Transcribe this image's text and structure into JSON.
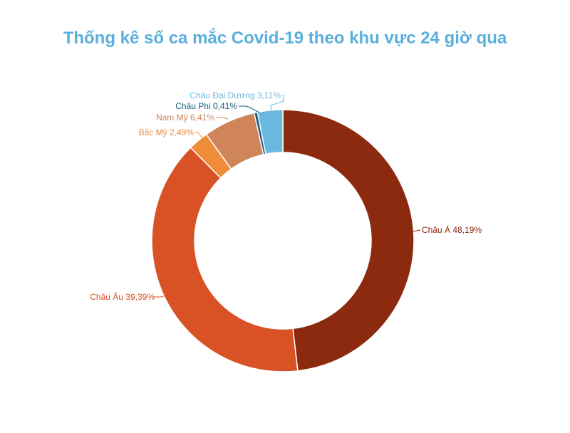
{
  "chart_data": {
    "type": "pie",
    "title": "Thống kê số ca mắc Covid-19 theo khu vực 24 giờ qua",
    "series": [
      {
        "name": "Châu Á",
        "value": 48.19,
        "label": "Châu Á 48,19%",
        "color": "#8b2a0e"
      },
      {
        "name": "Châu Âu",
        "value": 39.39,
        "label": "Châu Âu 39,39%",
        "color": "#d85226"
      },
      {
        "name": "Bắc Mỹ",
        "value": 2.49,
        "label": "Bắc Mỹ 2,49%",
        "color": "#ef8c3a"
      },
      {
        "name": "Nam Mỹ",
        "value": 6.41,
        "label": "Nam Mỹ 6,41%",
        "color": "#d0845a"
      },
      {
        "name": "Châu Phi",
        "value": 0.41,
        "label": "Châu Phi  0,41%",
        "color": "#155d7c"
      },
      {
        "name": "Châu Đại Dương",
        "value": 3.11,
        "label": "Châu Đại Dương 3,11%",
        "color": "#6bb8de"
      }
    ]
  }
}
